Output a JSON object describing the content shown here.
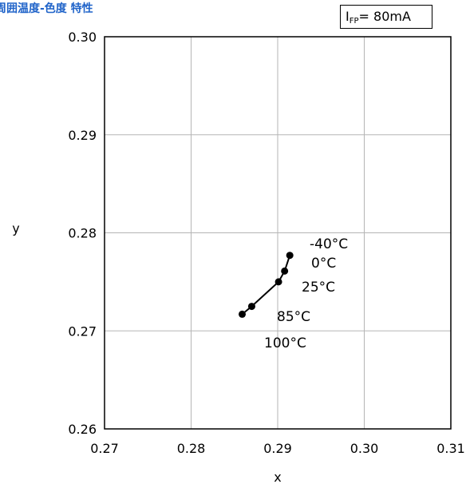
{
  "header": {
    "title": "周囲温度-色度 特性",
    "condition_main": "I",
    "condition_sub": "FP",
    "condition_value": "= 80mA"
  },
  "chart_data": {
    "type": "line",
    "title": "周囲温度-色度 特性",
    "xlabel": "x",
    "ylabel": "y",
    "xlim": [
      0.27,
      0.31
    ],
    "ylim": [
      0.26,
      0.3
    ],
    "xticks": [
      "0.27",
      "0.28",
      "0.29",
      "0.30",
      "0.31"
    ],
    "yticks": [
      "0.30",
      "0.29",
      "0.28",
      "0.27",
      "0.26"
    ],
    "grid": true,
    "series": [
      {
        "color": "#000000",
        "points": [
          {
            "x": 0.2914,
            "y": 0.2777
          },
          {
            "x": 0.2908,
            "y": 0.2761
          },
          {
            "x": 0.2901,
            "y": 0.275
          },
          {
            "x": 0.287,
            "y": 0.2725
          },
          {
            "x": 0.2859,
            "y": 0.2717
          }
        ]
      }
    ],
    "annotations": [
      "-40°C",
      "0°C",
      "25°C",
      "85°C",
      "100°C"
    ]
  }
}
